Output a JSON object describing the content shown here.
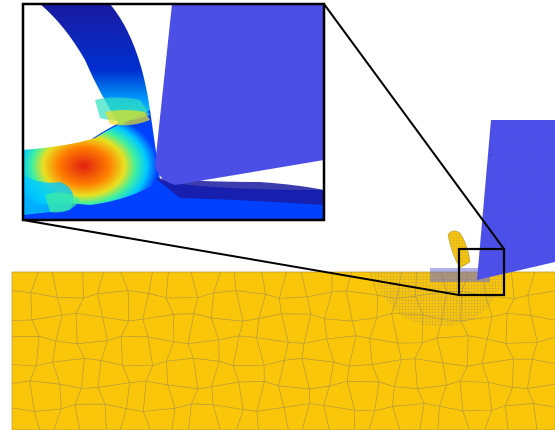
{
  "figure": {
    "workpiece_color": "#F9C60A",
    "workpiece_mesh_color": "#B89A3E",
    "tool_color": "#4D50E8",
    "tool_mesh_color": "#3A3DC8",
    "zoom_frame_color": "#000000",
    "contour_colors": [
      "#1a1aa0",
      "#0040ff",
      "#00c8ff",
      "#40f0a0",
      "#e8e020",
      "#ff8000",
      "#e02010"
    ]
  }
}
